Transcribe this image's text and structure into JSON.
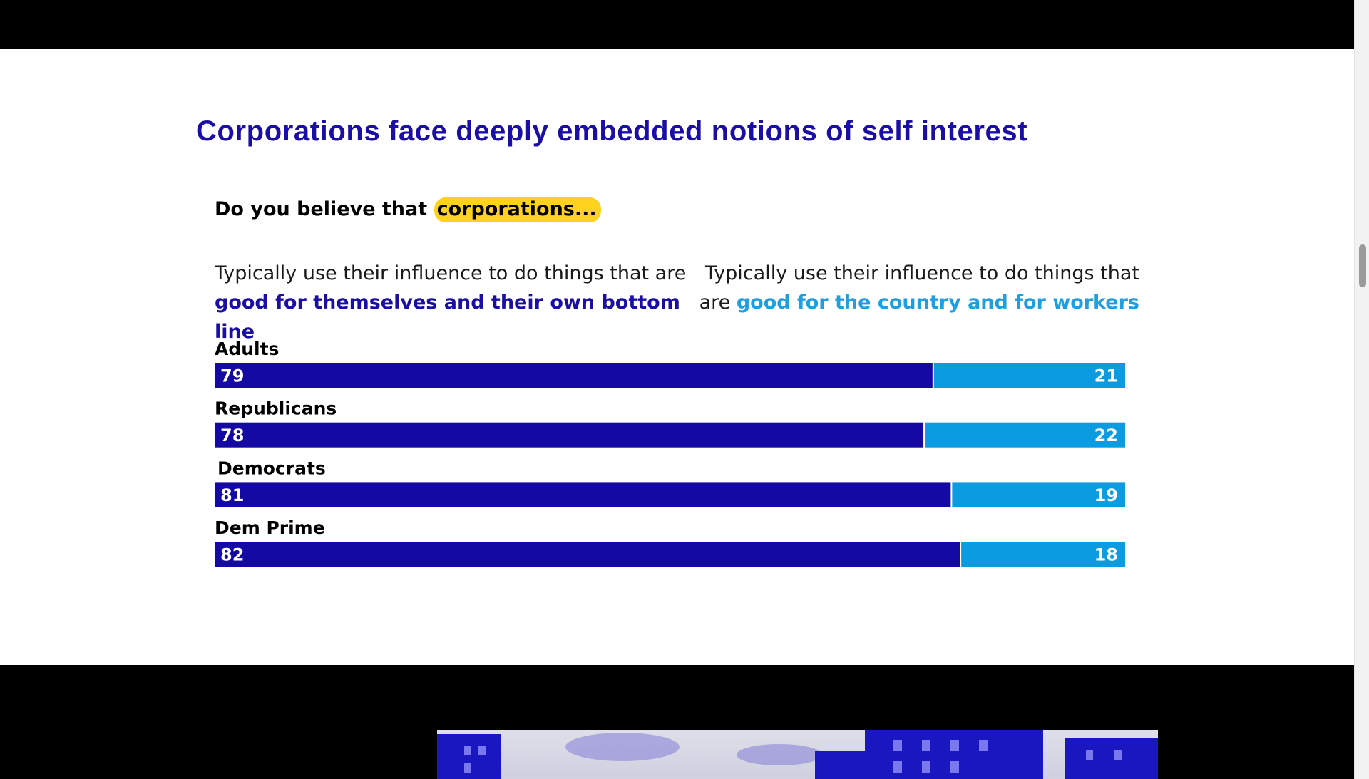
{
  "headline": "Corporations face deeply embedded notions of self interest",
  "question": {
    "prefix": "Do you believe that",
    "highlight": "corporations..."
  },
  "legend": {
    "left": {
      "text": "Typically use their influence to do things that are",
      "emphasis": "good for themselves and their own bottom line"
    },
    "right": {
      "text": "Typically use their influence to do things that are",
      "emphasis": "good for the country and for workers"
    }
  },
  "colors": {
    "headline": "#1a0ea6",
    "self_interest": "#1409a3",
    "country_workers": "#0a9be0",
    "highlight": "#ffd21f"
  },
  "chart_data": {
    "type": "bar",
    "orientation": "horizontal",
    "stacked": true,
    "categories": [
      "Adults",
      "Republicans",
      "Democrats",
      "Dem Prime"
    ],
    "series": [
      {
        "values": [
          79,
          78,
          81,
          82
        ]
      },
      {
        "values": [
          21,
          22,
          19,
          18
        ]
      }
    ],
    "xlim": [
      0,
      100
    ],
    "grid": false,
    "data_labels": true
  },
  "icons": [
    "city-photo"
  ]
}
